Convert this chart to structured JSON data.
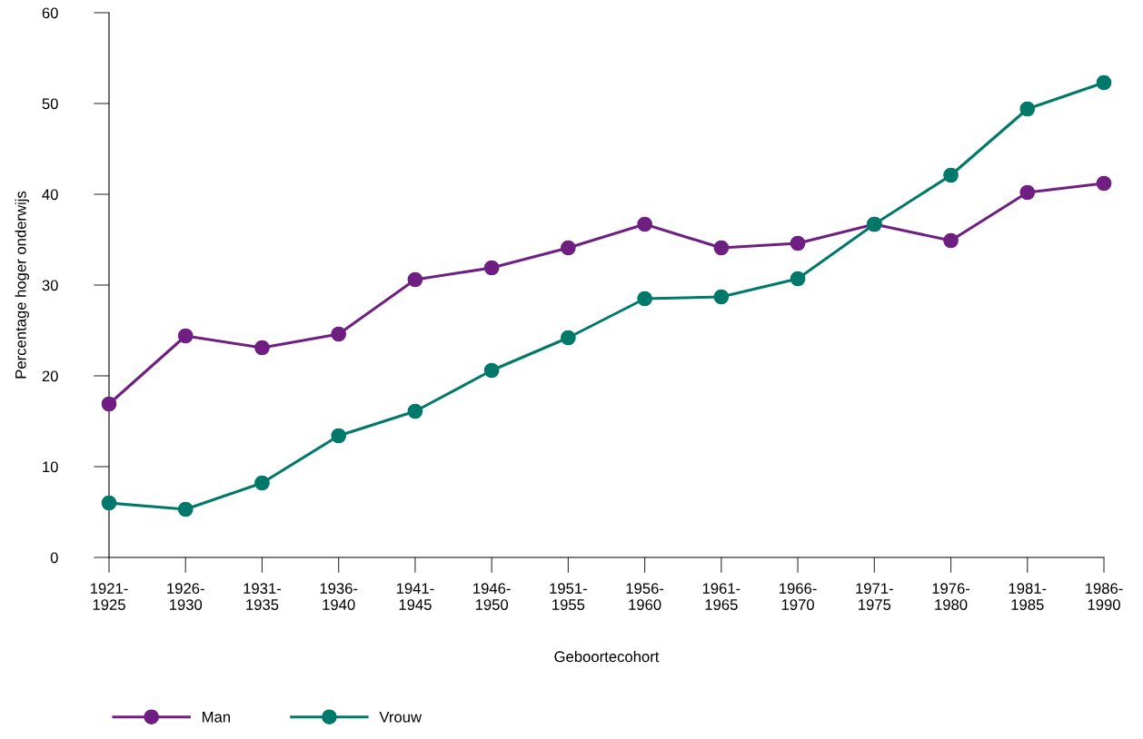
{
  "chart_data": {
    "type": "line",
    "xlabel": "Geboortecohort",
    "ylabel": "Percentage hoger onderwijs",
    "categories": [
      "1921-\n1925",
      "1926-\n1930",
      "1931-\n1935",
      "1936-\n1940",
      "1941-\n1945",
      "1946-\n1950",
      "1951-\n1955",
      "1956-\n1960",
      "1961-\n1965",
      "1966-\n1970",
      "1971-\n1975",
      "1976-\n1980",
      "1981-\n1985",
      "1986-\n1990"
    ],
    "series": [
      {
        "name": "Man",
        "color": "#6f1f82",
        "values": [
          16.9,
          24.4,
          23.1,
          24.6,
          30.6,
          31.9,
          34.1,
          36.7,
          34.1,
          34.6,
          36.7,
          34.9,
          40.2,
          41.2
        ]
      },
      {
        "name": "Vrouw",
        "color": "#00796a",
        "values": [
          6.0,
          5.3,
          8.2,
          13.4,
          16.1,
          20.6,
          24.2,
          28.5,
          28.7,
          30.7,
          36.7,
          42.1,
          49.4,
          52.3
        ]
      }
    ],
    "ylim": [
      0,
      60
    ],
    "yticks": [
      0,
      10,
      20,
      30,
      40,
      50,
      60
    ],
    "grid": false,
    "legend": "bottom left",
    "marker": "circle",
    "line_style": "solid"
  }
}
